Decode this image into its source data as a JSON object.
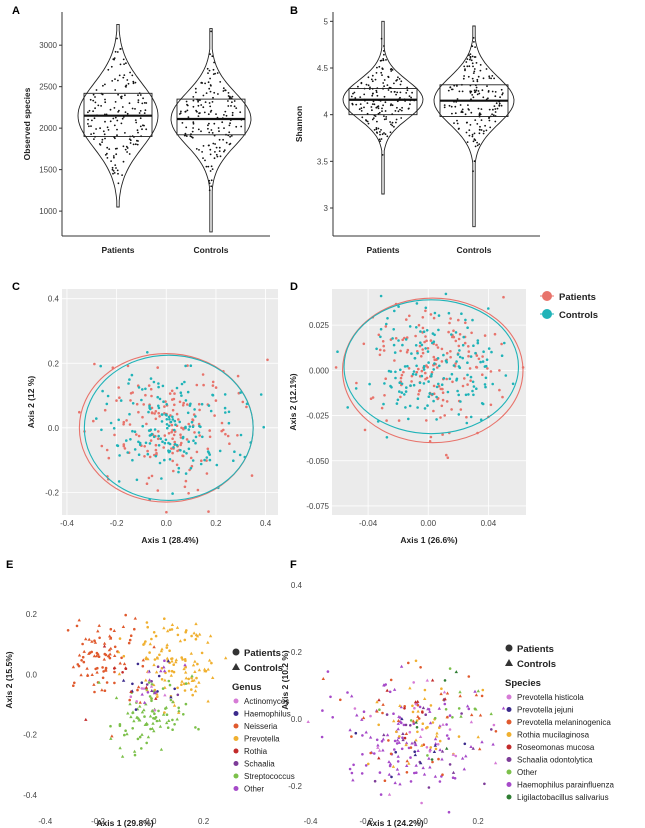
{
  "chart_data": [
    {
      "panel": "A",
      "type": "violin+box",
      "categories": [
        "Patients",
        "Controls"
      ],
      "ylabel": "Observed species",
      "yticks": [
        1000,
        1500,
        2000,
        2500,
        3000
      ],
      "ylim": [
        700,
        3400
      ],
      "box": [
        {
          "q1": 1900,
          "median": 2150,
          "q3": 2420,
          "min": 1050,
          "max": 3250
        },
        {
          "q1": 1920,
          "median": 2110,
          "q3": 2350,
          "min": 750,
          "max": 3200
        }
      ]
    },
    {
      "panel": "B",
      "type": "violin+box",
      "categories": [
        "Patients",
        "Controls"
      ],
      "ylabel": "Shannon",
      "yticks": [
        3.0,
        3.5,
        4.0,
        4.5,
        5.0
      ],
      "ylim": [
        2.7,
        5.1
      ],
      "box": [
        {
          "q1": 4.0,
          "median": 4.16,
          "q3": 4.28,
          "min": 3.15,
          "max": 5.0
        },
        {
          "q1": 3.98,
          "median": 4.15,
          "q3": 4.32,
          "min": 2.8,
          "max": 4.95
        }
      ]
    },
    {
      "panel": "C",
      "type": "scatter",
      "xlabel": "Axis 1 (28.4%)",
      "ylabel": "Axis 2 (12 %)",
      "xticks": [
        -0.4,
        -0.2,
        0.0,
        0.2,
        0.4
      ],
      "yticks": [
        -0.2,
        0.0,
        0.2,
        0.4
      ],
      "xlim": [
        -0.42,
        0.45
      ],
      "ylim": [
        -0.27,
        0.43
      ],
      "series": [
        {
          "name": "Patients",
          "color": "#e8736b",
          "ellipse": {
            "cx": 0.0,
            "cy": 0.0,
            "rx": 0.35,
            "ry": 0.23
          }
        },
        {
          "name": "Controls",
          "color": "#1fb3b8",
          "ellipse": {
            "cx": 0.01,
            "cy": 0.0,
            "rx": 0.34,
            "ry": 0.225
          }
        }
      ]
    },
    {
      "panel": "D",
      "type": "scatter",
      "xlabel": "Axis 1 (26.6%)",
      "ylabel": "Axis 2 (12.1%)",
      "xticks": [
        -0.04,
        0.0,
        0.04
      ],
      "yticks": [
        0.025,
        0.0,
        -0.025,
        -0.05,
        -0.075
      ],
      "xlim": [
        -0.064,
        0.065
      ],
      "ylim": [
        -0.08,
        0.045
      ],
      "series": [
        {
          "name": "Patients",
          "color": "#e8736b",
          "ellipse": {
            "cx": 0.003,
            "cy": 0.0,
            "rx": 0.06,
            "ry": 0.04
          }
        },
        {
          "name": "Controls",
          "color": "#1fb3b8",
          "ellipse": {
            "cx": 0.002,
            "cy": 0.002,
            "rx": 0.058,
            "ry": 0.037
          }
        }
      ]
    },
    {
      "panel": "E",
      "type": "scatter",
      "xlabel": "Axis 1 (29.8%)",
      "ylabel": "Axis 2 (15.5%)",
      "xticks": [
        -0.4,
        -0.2,
        0.0,
        0.2
      ],
      "yticks": [
        0.2,
        0.0,
        -0.2,
        -0.4
      ],
      "xlim": [
        -0.42,
        0.3
      ],
      "ylim": [
        -0.46,
        0.33
      ],
      "legend": {
        "shapes": [
          "Patients",
          "Controls"
        ],
        "title": "Genus",
        "items": [
          {
            "name": "Actinomyces",
            "color": "#d67bd6"
          },
          {
            "name": "Haemophilus",
            "color": "#3b2a8c"
          },
          {
            "name": "Neisseria",
            "color": "#e05a2e"
          },
          {
            "name": "Prevotella",
            "color": "#f0b030"
          },
          {
            "name": "Rothia",
            "color": "#c22a2a"
          },
          {
            "name": "Schaalia",
            "color": "#7d3c98"
          },
          {
            "name": "Streptococcus",
            "color": "#7cc04a"
          },
          {
            "name": "Other",
            "color": "#a64ac9"
          }
        ]
      }
    },
    {
      "panel": "F",
      "type": "scatter",
      "xlabel": "Axis 1 (24.2%)",
      "ylabel": "Axis 2 (10.2 %)",
      "xticks": [
        -0.4,
        -0.2,
        0.0,
        0.2
      ],
      "yticks": [
        0.4,
        0.2,
        0.0,
        -0.2
      ],
      "xlim": [
        -0.42,
        0.35
      ],
      "ylim": [
        -0.28,
        0.43
      ],
      "legend": {
        "shapes": [
          "Patients",
          "Controls"
        ],
        "title": "Species",
        "items": [
          {
            "name": "Prevotella histicola",
            "color": "#d67bd6"
          },
          {
            "name": "Prevotella jejuni",
            "color": "#3b2a8c"
          },
          {
            "name": "Prevotella melaninogenica",
            "color": "#e05a2e"
          },
          {
            "name": "Rothia mucilaginosa",
            "color": "#f0b030"
          },
          {
            "name": "Roseomonas mucosa",
            "color": "#c22a2a"
          },
          {
            "name": "Schaalia odontolytica",
            "color": "#7d3c98"
          },
          {
            "name": "Other",
            "color": "#7cc04a"
          },
          {
            "name": "Haemophilus parainfluenza",
            "color": "#a64ac9"
          },
          {
            "name": "Ligilactobacillus salivarius",
            "color": "#2e7d32"
          }
        ]
      }
    }
  ],
  "legend_cd": [
    {
      "name": "Patients",
      "color": "#e8736b"
    },
    {
      "name": "Controls",
      "color": "#1fb3b8"
    }
  ]
}
